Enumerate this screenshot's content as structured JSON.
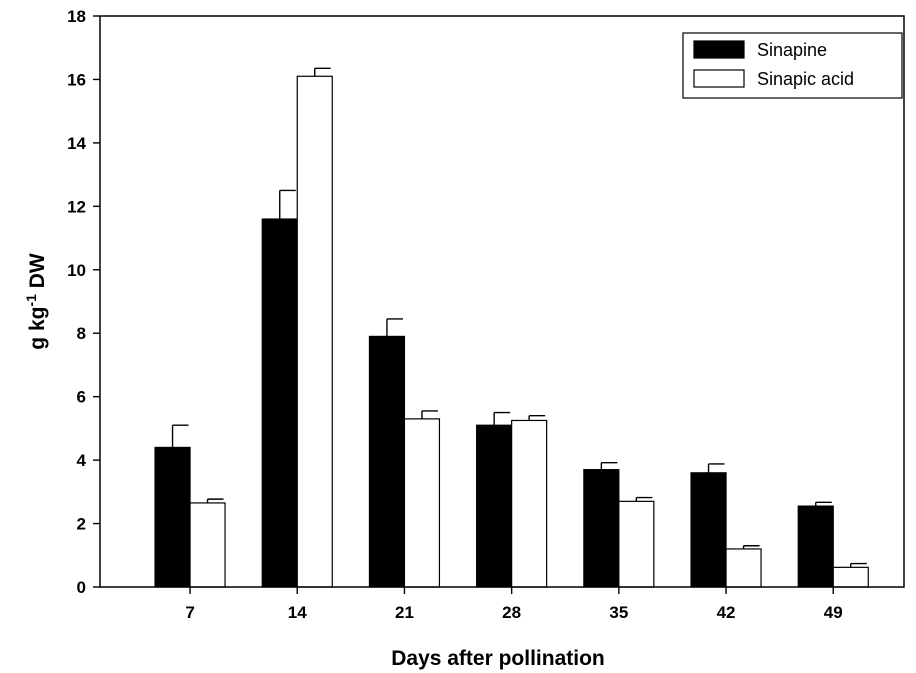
{
  "chart_data": {
    "type": "bar",
    "title": "",
    "xlabel": "Days after pollination",
    "ylabel": {
      "base": "g kg",
      "superscript": "-1",
      "suffix": " DW"
    },
    "categories": [
      "7",
      "14",
      "21",
      "28",
      "35",
      "42",
      "49"
    ],
    "ylim": [
      0,
      18
    ],
    "yticks": [
      "0",
      "2",
      "4",
      "6",
      "8",
      "10",
      "12",
      "14",
      "16",
      "18"
    ],
    "grid": false,
    "legend_position": "top-right",
    "series": [
      {
        "name": "Sinapine",
        "color": "#000000",
        "values": [
          4.4,
          11.6,
          7.9,
          5.1,
          3.7,
          3.6,
          2.55
        ],
        "errors": [
          0.7,
          0.9,
          0.55,
          0.4,
          0.22,
          0.28,
          0.12
        ]
      },
      {
        "name": "Sinapic acid",
        "color": "#ffffff",
        "values": [
          2.65,
          16.1,
          5.3,
          5.25,
          2.7,
          1.2,
          0.62
        ],
        "errors": [
          0.12,
          0.25,
          0.25,
          0.15,
          0.12,
          0.1,
          0.12
        ]
      }
    ]
  }
}
